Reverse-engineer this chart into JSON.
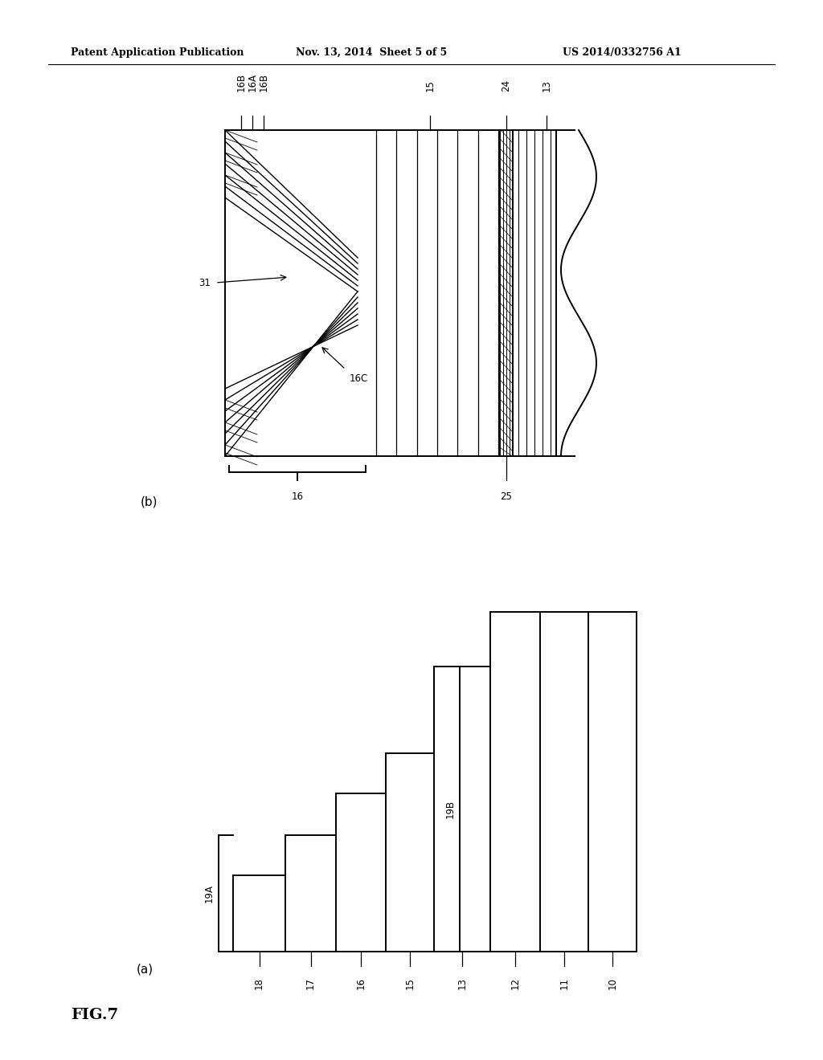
{
  "bg_color": "#ffffff",
  "line_color": "#000000",
  "header_left": "Patent Application Publication",
  "header_mid": "Nov. 13, 2014  Sheet 5 of 5",
  "header_right": "US 2014/0332756 A1",
  "fig_label": "FIG.7",
  "sub_a_label": "(a)",
  "sub_b_label": "(b)",
  "header_fontsize": 9,
  "label_fontsize": 8.5,
  "fig_label_fontsize": 14
}
